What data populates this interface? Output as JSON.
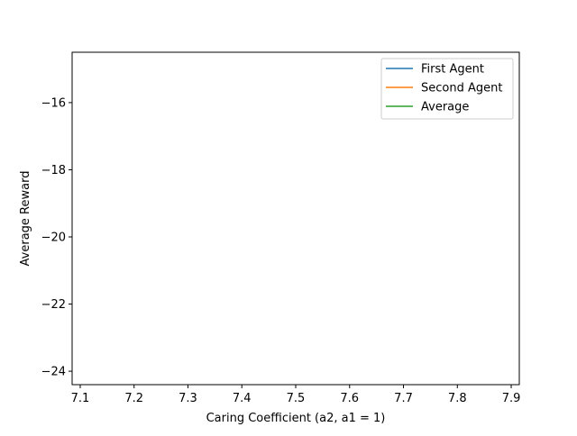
{
  "chart_data": {
    "type": "line",
    "title": "",
    "xlabel": "Caring Coefficient (a2, a1 = 1)",
    "ylabel": "Average Reward",
    "xlim": [
      7.085,
      7.915
    ],
    "ylim": [
      -24.4,
      -14.5
    ],
    "x_ticks": [
      7.1,
      7.2,
      7.3,
      7.4,
      7.5,
      7.6,
      7.7,
      7.8,
      7.9
    ],
    "x_tick_labels": [
      "7.1",
      "7.2",
      "7.3",
      "7.4",
      "7.5",
      "7.6",
      "7.7",
      "7.8",
      "7.9"
    ],
    "y_ticks": [
      -16,
      -18,
      -20,
      -22,
      -24
    ],
    "y_tick_labels": [
      "−16",
      "−18",
      "−20",
      "−22",
      "−24"
    ],
    "grid": false,
    "legend_position": "top-right",
    "series": [
      {
        "name": "First Agent",
        "color": "#1f77b4",
        "x": [],
        "y": []
      },
      {
        "name": "Second Agent",
        "color": "#ff7f0e",
        "x": [],
        "y": []
      },
      {
        "name": "Average",
        "color": "#2ca02c",
        "x": [],
        "y": []
      }
    ]
  }
}
